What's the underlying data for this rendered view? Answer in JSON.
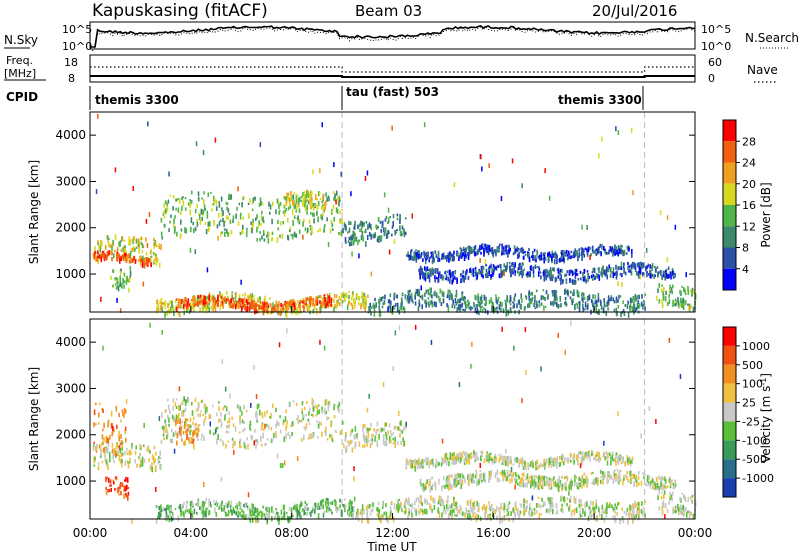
{
  "header": {
    "station": "Kapuskasing (fitACF)",
    "beam": "Beam 03",
    "date": "20/Jul/2016"
  },
  "nsky_panel": {
    "left_label": "N.Sky",
    "right_label": "N.Search",
    "left_ticks": [
      "10^5",
      "10^0"
    ],
    "right_ticks": [
      "10^5",
      "10^0"
    ]
  },
  "freq_panel": {
    "left_label": "Freq.",
    "left_unit": "[MHz]",
    "right_label": "Nave",
    "left_ticks": [
      "18",
      "8"
    ],
    "right_ticks": [
      "60",
      "0"
    ]
  },
  "cpid": {
    "label": "CPID",
    "segments": [
      {
        "name": "themis 3300",
        "start_hour": 0,
        "end_hour": 10
      },
      {
        "name": "tau (fast) 503",
        "start_hour": 10,
        "end_hour": 22
      },
      {
        "name": "themis 3300",
        "start_hour": 18.5,
        "end_hour": 24
      }
    ]
  },
  "x_axis": {
    "label": "Time UT",
    "ticks": [
      "00:00",
      "04:00",
      "08:00",
      "12:00",
      "16:00",
      "20:00",
      "00:00"
    ]
  },
  "chart_data": [
    {
      "type": "heatmap",
      "name": "power",
      "ylabel": "Slant Range [km]",
      "colorbar_label": "Power [dB]",
      "xlim_hours": [
        0,
        24
      ],
      "ylim_km": [
        180,
        4500
      ],
      "y_ticks": [
        "1000",
        "2000",
        "3000",
        "4000"
      ],
      "colorbar_ticks": [
        "4",
        "8",
        "12",
        "16",
        "20",
        "24",
        "28"
      ],
      "colors": [
        "#0000ff",
        "#2a52a8",
        "#3d8a6a",
        "#4fb54a",
        "#d8d820",
        "#f0a020",
        "#f06010",
        "#ff0000"
      ],
      "bands": [
        {
          "t0": 0.1,
          "t1": 2.8,
          "r0": 1250,
          "r1": 1750,
          "level": 4
        },
        {
          "t0": 0.1,
          "t1": 2.4,
          "r0": 1250,
          "r1": 1400,
          "level": 6
        },
        {
          "t0": 2.8,
          "t1": 10.0,
          "r0": 1800,
          "r1": 2700,
          "level": 3
        },
        {
          "t0": 7.6,
          "t1": 9.3,
          "r0": 2350,
          "r1": 2700,
          "level": 4
        },
        {
          "t0": 10.0,
          "t1": 12.5,
          "r0": 1700,
          "r1": 2200,
          "level": 2
        },
        {
          "t0": 13.0,
          "t1": 23.2,
          "r0": 900,
          "r1": 1150,
          "level": 1
        },
        {
          "t0": 12.5,
          "t1": 21.5,
          "r0": 1350,
          "r1": 1550,
          "level": 1
        },
        {
          "t0": 2.6,
          "t1": 11.0,
          "r0": 200,
          "r1": 520,
          "level": 4
        },
        {
          "t0": 3.4,
          "t1": 9.6,
          "r0": 250,
          "r1": 450,
          "level": 6
        },
        {
          "t0": 11.0,
          "t1": 22.0,
          "r0": 200,
          "r1": 600,
          "level": 2
        },
        {
          "t0": 22.5,
          "t1": 24.0,
          "r0": 250,
          "r1": 700,
          "level": 3
        },
        {
          "t0": 0.8,
          "t1": 1.6,
          "r0": 700,
          "r1": 1100,
          "level": 3
        }
      ]
    },
    {
      "type": "heatmap",
      "name": "velocity",
      "ylabel": "Slant Range [km]",
      "colorbar_label": "Velocity [m s",
      "colorbar_label_sup": "-1",
      "colorbar_label_end": "]",
      "xlim_hours": [
        0,
        24
      ],
      "ylim_km": [
        180,
        4500
      ],
      "y_ticks": [
        "1000",
        "2000",
        "3000",
        "4000"
      ],
      "colorbar_ticks": [
        "1000",
        "500",
        "100",
        "25",
        "-25",
        "-100",
        "-500",
        "-1000"
      ],
      "colors": [
        "#1a3fb0",
        "#2a6f8a",
        "#3a9a58",
        "#5ac03a",
        "#c8c8c8",
        "#f0c040",
        "#f09020",
        "#f05010",
        "#ff0000"
      ],
      "bands": [
        {
          "t0": 0.1,
          "t1": 2.8,
          "r0": 1250,
          "r1": 1750,
          "level": 4
        },
        {
          "t0": 0.1,
          "t1": 1.4,
          "r0": 1500,
          "r1": 2600,
          "level": 6
        },
        {
          "t0": 0.6,
          "t1": 1.5,
          "r0": 700,
          "r1": 1100,
          "level": 7
        },
        {
          "t0": 2.8,
          "t1": 10.0,
          "r0": 1800,
          "r1": 2700,
          "level": 4
        },
        {
          "t0": 3.3,
          "t1": 4.3,
          "r0": 1750,
          "r1": 2300,
          "level": 6
        },
        {
          "t0": 10.0,
          "t1": 12.5,
          "r0": 1700,
          "r1": 2200,
          "level": 4
        },
        {
          "t0": 13.0,
          "t1": 23.2,
          "r0": 900,
          "r1": 1150,
          "level": 4
        },
        {
          "t0": 12.5,
          "t1": 21.5,
          "r0": 1350,
          "r1": 1550,
          "level": 4
        },
        {
          "t0": 2.6,
          "t1": 10.5,
          "r0": 200,
          "r1": 520,
          "level": 3
        },
        {
          "t0": 10.5,
          "t1": 22.0,
          "r0": 200,
          "r1": 600,
          "level": 4
        },
        {
          "t0": 22.5,
          "t1": 24.0,
          "r0": 250,
          "r1": 700,
          "level": 4
        }
      ]
    }
  ]
}
